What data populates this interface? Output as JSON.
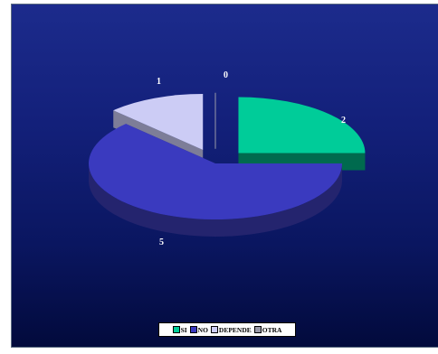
{
  "chart_data": {
    "type": "pie",
    "style": "3d-exploded",
    "title": "",
    "slices": [
      {
        "label": "SI",
        "value": 2,
        "data_label": "2",
        "color": "#00cc99",
        "side_color": "#006a4e"
      },
      {
        "label": "NO",
        "value": 5,
        "data_label": "5",
        "color": "#3a3abf",
        "side_color": "#24246e"
      },
      {
        "label": "DEPENDE",
        "value": 1,
        "data_label": "1",
        "color": "#ccccf5",
        "side_color": "#7d7d98"
      },
      {
        "label": "OTRA",
        "value": 0,
        "data_label": "0",
        "color": "#9999a8",
        "side_color": "#5a5a66"
      }
    ],
    "legend_position": "bottom",
    "background_color": "#0a1660"
  }
}
